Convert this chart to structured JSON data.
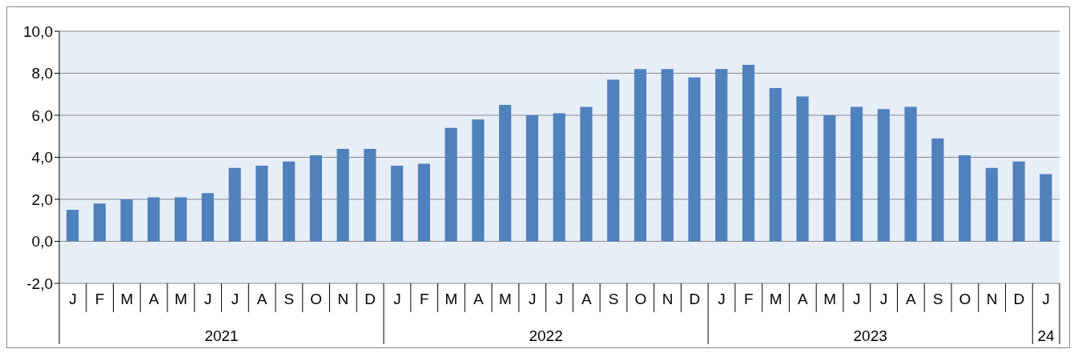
{
  "chart_data": {
    "type": "bar",
    "categories": [
      "J",
      "F",
      "M",
      "A",
      "M",
      "J",
      "J",
      "A",
      "S",
      "O",
      "N",
      "D",
      "J",
      "F",
      "M",
      "A",
      "M",
      "J",
      "J",
      "A",
      "S",
      "O",
      "N",
      "D",
      "J",
      "F",
      "M",
      "A",
      "M",
      "J",
      "J",
      "A",
      "S",
      "O",
      "N",
      "D",
      "J"
    ],
    "values": [
      1.5,
      1.8,
      2.0,
      2.1,
      2.1,
      2.3,
      3.5,
      3.6,
      3.8,
      4.1,
      4.4,
      4.4,
      3.6,
      3.7,
      5.4,
      5.8,
      6.5,
      6.0,
      6.1,
      6.4,
      7.7,
      8.2,
      8.2,
      7.8,
      8.2,
      8.4,
      7.3,
      6.9,
      6.0,
      6.4,
      6.3,
      6.4,
      4.9,
      4.1,
      3.5,
      3.8,
      3.2
    ],
    "color": "#4f81bd",
    "ylim": [
      -2,
      10
    ],
    "yticks": [
      {
        "value": -2,
        "label": "-2,0"
      },
      {
        "value": 0,
        "label": "0,0"
      },
      {
        "value": 2,
        "label": "2,0"
      },
      {
        "value": 4,
        "label": "4,0"
      },
      {
        "value": 6,
        "label": "6,0"
      },
      {
        "value": 8,
        "label": "8,0"
      },
      {
        "value": 10,
        "label": "10,0"
      }
    ],
    "grid": "y",
    "annotations": [
      "2021",
      "2022",
      "2023",
      "24"
    ]
  }
}
